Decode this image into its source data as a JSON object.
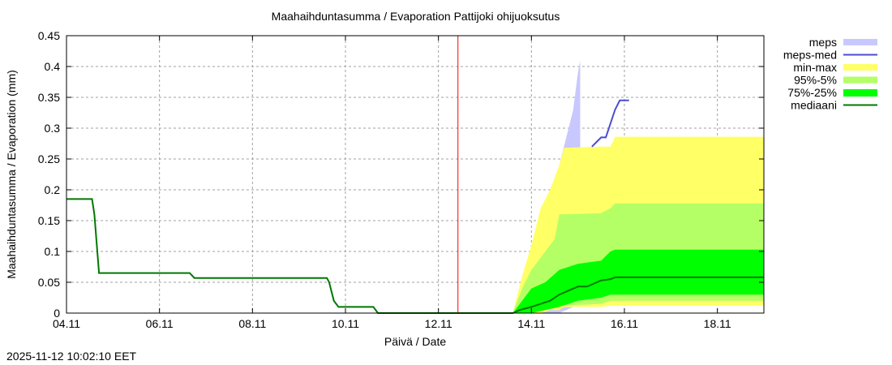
{
  "header": {
    "title": "Maahaihduntasumma / Evaporation   Pattijoki ohijuoksutus"
  },
  "footer": {
    "timestamp": "2025-11-12 10:02:10 EET"
  },
  "chart_data": {
    "type": "area",
    "title": "Maahaihduntasumma / Evaporation   Pattijoki ohijuoksutus",
    "xlabel": "Päivä / Date",
    "ylabel": "Maahaihduntasumma / Evaporation (mm)",
    "ylim": [
      0,
      0.45
    ],
    "xlim_days": [
      0,
      15
    ],
    "x_origin_date": "04.11",
    "grid": true,
    "legend_position": "right-outside-top",
    "forecast_start_day": 8.42,
    "forecast_line_color": "#ff0000",
    "x_ticks": [
      {
        "day": 0,
        "label": "04.11"
      },
      {
        "day": 2,
        "label": "06.11"
      },
      {
        "day": 4,
        "label": "08.11"
      },
      {
        "day": 6,
        "label": "10.11"
      },
      {
        "day": 8,
        "label": "12.11"
      },
      {
        "day": 10,
        "label": "14.11"
      },
      {
        "day": 12,
        "label": "16.11"
      },
      {
        "day": 14,
        "label": "18.11"
      }
    ],
    "y_ticks": [
      {
        "value": 0,
        "label": "0"
      },
      {
        "value": 0.05,
        "label": "0.05"
      },
      {
        "value": 0.1,
        "label": "0.1"
      },
      {
        "value": 0.15,
        "label": "0.15"
      },
      {
        "value": 0.2,
        "label": "0.2"
      },
      {
        "value": 0.25,
        "label": "0.25"
      },
      {
        "value": 0.3,
        "label": "0.3"
      },
      {
        "value": 0.35,
        "label": "0.35"
      },
      {
        "value": 0.4,
        "label": "0.4"
      },
      {
        "value": 0.45,
        "label": "0.45"
      }
    ],
    "legend": [
      {
        "name": "meps",
        "kind": "band",
        "color": "#c8c8ff"
      },
      {
        "name": "meps-med",
        "kind": "line",
        "color": "#4b4bd2"
      },
      {
        "name": "min-max",
        "kind": "band",
        "color": "#ffff66"
      },
      {
        "name": "95%-5%",
        "kind": "band",
        "color": "#b4ff66"
      },
      {
        "name": "75%-25%",
        "kind": "band",
        "color": "#00ff00"
      },
      {
        "name": "mediaani",
        "kind": "line",
        "color": "#007800"
      }
    ],
    "series": [
      {
        "name": "meps",
        "kind": "band",
        "color": "#c8c8ff",
        "x": [
          9.6,
          10.0,
          10.3,
          10.6,
          10.9,
          11.0,
          11.05
        ],
        "upper": [
          0.0,
          0.06,
          0.15,
          0.24,
          0.33,
          0.39,
          0.41
        ],
        "lower": [
          0.0,
          0.0,
          0.0,
          0.0,
          0.01,
          0.01,
          0.01
        ]
      },
      {
        "name": "min-max",
        "kind": "band",
        "color": "#ffff66",
        "x": [
          9.6,
          9.8,
          10.0,
          10.2,
          10.4,
          10.6,
          10.7,
          11.5,
          11.7,
          11.8,
          15.0
        ],
        "upper": [
          0.0,
          0.06,
          0.11,
          0.17,
          0.2,
          0.24,
          0.268,
          0.27,
          0.27,
          0.286,
          0.286
        ],
        "lower": [
          0.0,
          0.0,
          0.0,
          0.0,
          0.005,
          0.005,
          0.01,
          0.01,
          0.012,
          0.012,
          0.012
        ]
      },
      {
        "name": "95%-5%",
        "kind": "band",
        "color": "#b4ff66",
        "x": [
          9.6,
          9.8,
          10.0,
          10.2,
          10.5,
          10.6,
          11.5,
          11.7,
          11.8,
          15.0
        ],
        "upper": [
          0.0,
          0.04,
          0.07,
          0.09,
          0.12,
          0.16,
          0.162,
          0.17,
          0.178,
          0.178
        ],
        "lower": [
          0.0,
          0.0,
          0.0,
          0.005,
          0.01,
          0.012,
          0.015,
          0.02,
          0.02,
          0.02
        ]
      },
      {
        "name": "75%-25%",
        "kind": "band",
        "color": "#00ff00",
        "x": [
          9.6,
          9.8,
          10.0,
          10.3,
          10.6,
          11.0,
          11.5,
          11.7,
          11.8,
          15.0
        ],
        "upper": [
          0.0,
          0.02,
          0.04,
          0.05,
          0.07,
          0.08,
          0.085,
          0.1,
          0.103,
          0.103
        ],
        "lower": [
          0.0,
          0.0,
          0.0,
          0.005,
          0.01,
          0.02,
          0.025,
          0.03,
          0.03,
          0.03
        ]
      },
      {
        "name": "meps-med",
        "kind": "line",
        "color": "#4b4bd2",
        "x": [
          11.3,
          11.5,
          11.6,
          11.8,
          11.9,
          12.1
        ],
        "values": [
          0.27,
          0.285,
          0.285,
          0.33,
          0.345,
          0.345
        ]
      },
      {
        "name": "mediaani",
        "kind": "line",
        "color": "#007800",
        "x": [
          0.0,
          0.55,
          0.6,
          0.7,
          2.65,
          2.75,
          5.6,
          5.65,
          5.75,
          5.85,
          6.6,
          6.7,
          9.6,
          9.75,
          10.0,
          10.2,
          10.4,
          10.6,
          11.0,
          11.2,
          11.5,
          11.7,
          11.8,
          15.0
        ],
        "values": [
          0.185,
          0.185,
          0.16,
          0.065,
          0.065,
          0.057,
          0.057,
          0.05,
          0.02,
          0.01,
          0.01,
          0.0,
          0.0,
          0.005,
          0.01,
          0.015,
          0.02,
          0.03,
          0.043,
          0.043,
          0.053,
          0.055,
          0.058,
          0.058
        ]
      }
    ]
  }
}
